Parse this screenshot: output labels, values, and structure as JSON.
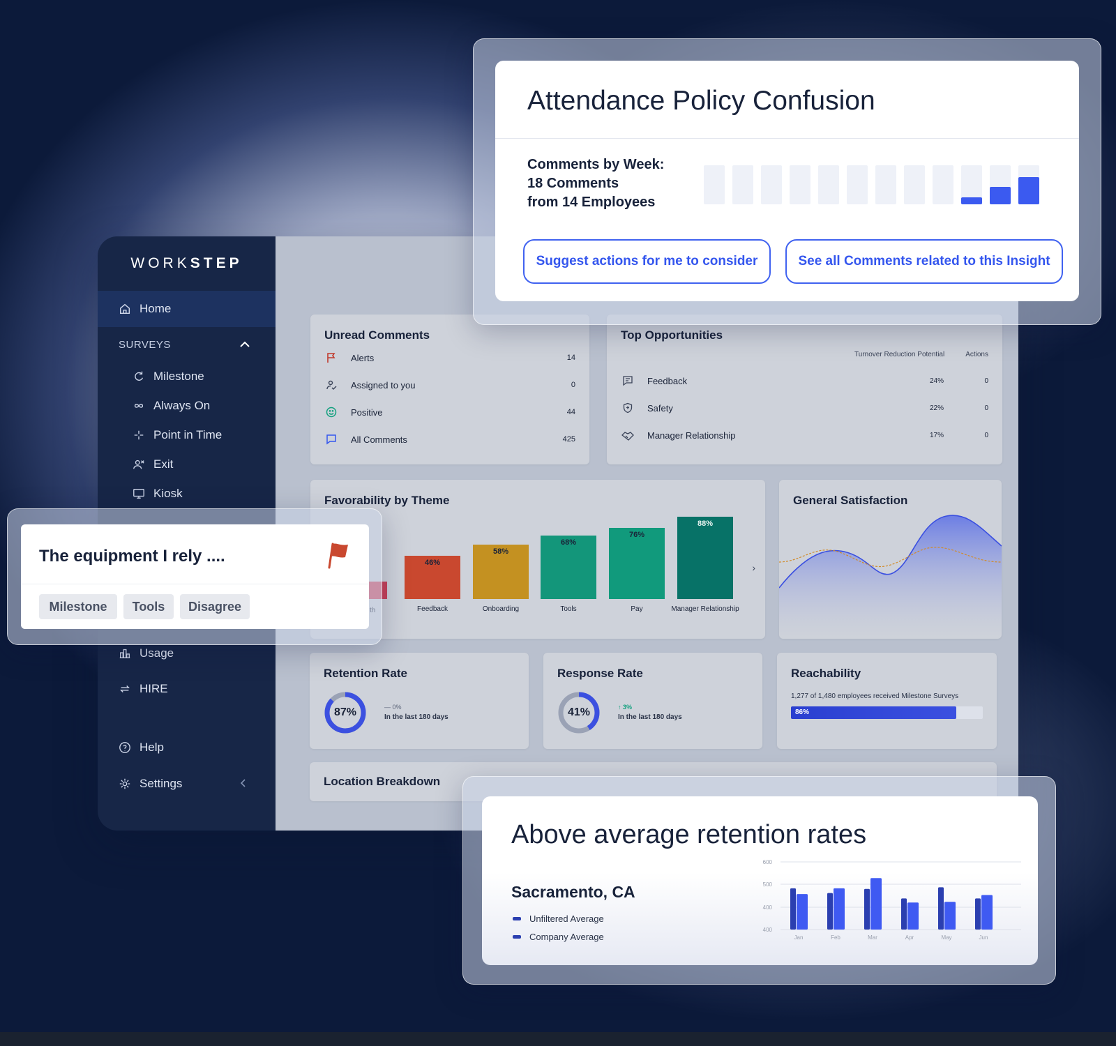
{
  "sidebar": {
    "logo": {
      "left": "WORK",
      "right": "STEP"
    },
    "home": "Home",
    "surveys_header": "SURVEYS",
    "survey_items": [
      "Milestone",
      "Always On",
      "Point in Time",
      "Exit",
      "Kiosk"
    ],
    "usage": "Usage",
    "hire": "HIRE",
    "help": "Help",
    "settings": "Settings"
  },
  "unread_comments": {
    "title": "Unread Comments",
    "rows": [
      {
        "label": "Alerts",
        "count": "14",
        "icon": "flag-icon"
      },
      {
        "label": "Assigned to you",
        "count": "0",
        "icon": "user-check-icon"
      },
      {
        "label": "Positive",
        "count": "44",
        "icon": "smile-icon"
      },
      {
        "label": "All Comments",
        "count": "425",
        "icon": "chat-icon"
      }
    ]
  },
  "top_opportunities": {
    "title": "Top Opportunities",
    "col_potential": "Turnover Reduction Potential",
    "col_actions": "Actions",
    "rows": [
      {
        "label": "Feedback",
        "pct": "24%",
        "actions": "0",
        "icon": "feedback-icon"
      },
      {
        "label": "Safety",
        "pct": "22%",
        "actions": "0",
        "icon": "shield-icon"
      },
      {
        "label": "Manager Relationship",
        "pct": "17%",
        "actions": "0",
        "icon": "handshake-icon"
      }
    ]
  },
  "favorability": {
    "title": "Favorability by Theme",
    "partial_label": "th",
    "chart_data": {
      "type": "bar",
      "categories": [
        "Feedback",
        "Onboarding",
        "Tools",
        "Pay",
        "Manager Relationship"
      ],
      "values": [
        46,
        58,
        68,
        76,
        88
      ],
      "labels": [
        "46%",
        "58%",
        "68%",
        "76%",
        "88%"
      ],
      "colors": [
        "#c9482f",
        "#c49121",
        "#13967a",
        "#119a7c",
        "#077267"
      ]
    }
  },
  "general_satisfaction": {
    "title": "General Satisfaction"
  },
  "retention_rate": {
    "title": "Retention Rate",
    "value": 87,
    "label": "87%",
    "delta": "— 0%",
    "period": "In the last 180 days"
  },
  "response_rate": {
    "title": "Response Rate",
    "value": 41,
    "label": "41%",
    "delta": "↑ 3%",
    "period": "In the last 180 days"
  },
  "reachability": {
    "title": "Reachability",
    "text": "1,277 of 1,480 employees received Milestone Surveys",
    "value": 86,
    "label": "86%"
  },
  "location_breakdown": {
    "title": "Location Breakdown"
  },
  "insight": {
    "title": "Attendance Policy Confusion",
    "line1": "Comments by Week:",
    "line2": "18 Comments",
    "line3": "from 14 Employees",
    "weekly_fill": [
      0,
      0,
      0,
      0,
      0,
      0,
      0,
      0,
      0,
      0.18,
      0.45,
      0.7
    ],
    "btn_suggest": "Suggest actions for me to consider",
    "btn_see_all": "See all Comments related to this Insight"
  },
  "comment_card": {
    "title": "The equipment I rely ....",
    "tags": [
      "Milestone",
      "Tools",
      "Disagree"
    ],
    "flag_color": "#c9482f"
  },
  "retention_card": {
    "title": "Above average retention rates",
    "city": "Sacramento, CA",
    "legend": [
      "Unfiltered Average",
      "Company Average"
    ],
    "chart_data": {
      "type": "bar",
      "categories": [
        "Jan",
        "Feb",
        "Mar",
        "Apr",
        "May",
        "Jun"
      ],
      "y_ticks": [
        "600",
        "500",
        "400",
        "400"
      ],
      "series": [
        {
          "name": "Unfiltered Average",
          "values": [
            522,
            508,
            520,
            492,
            525,
            492
          ],
          "color": "#2b3fb0"
        },
        {
          "name": "Company Average",
          "values": [
            505,
            522,
            552,
            480,
            482,
            502
          ],
          "color": "#3f5af2"
        }
      ],
      "ylim": [
        400,
        600
      ]
    }
  }
}
